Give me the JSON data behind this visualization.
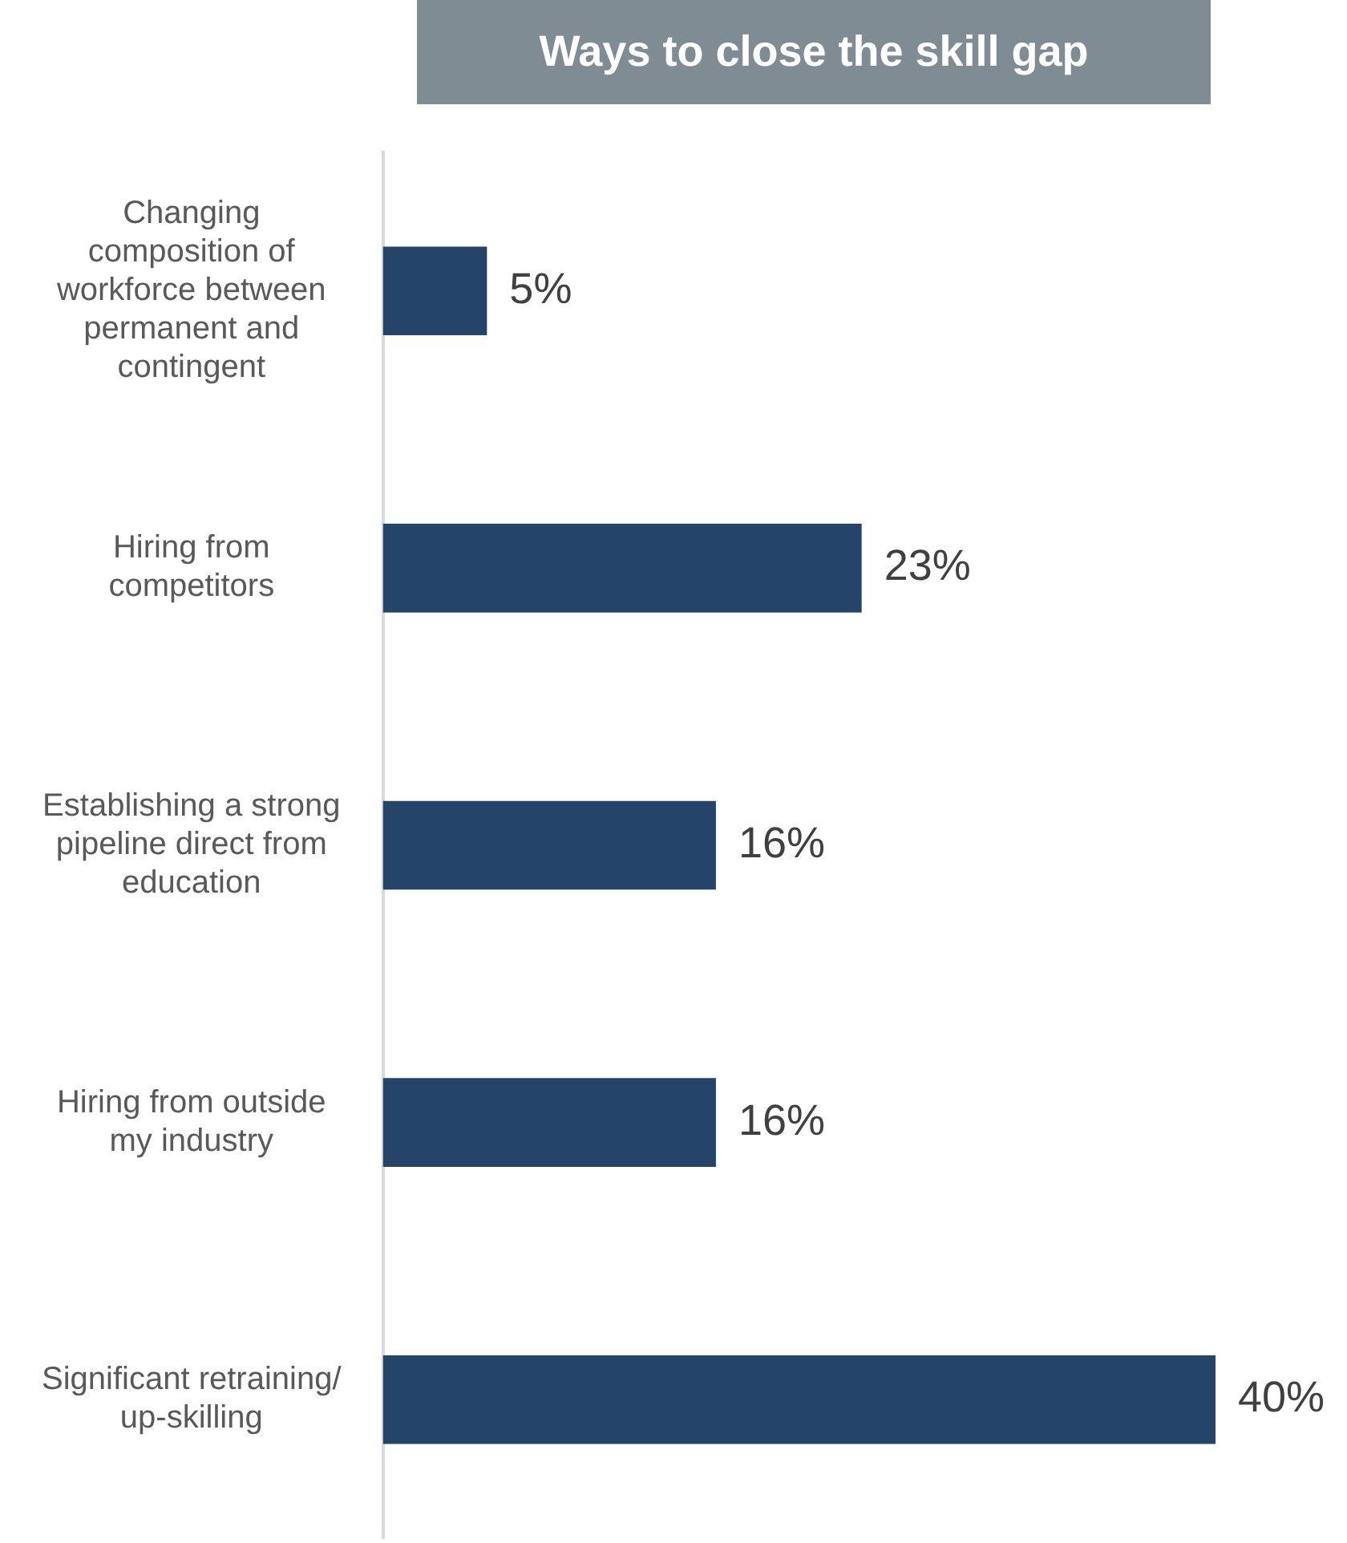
{
  "chart_data": {
    "type": "bar",
    "orientation": "horizontal",
    "title": "Ways to close the skill gap",
    "categories": [
      "Changing composition of workforce between permanent and contingent",
      "Hiring from competitors",
      "Establishing a strong pipeline direct from education",
      "Hiring from outside my industry",
      "Significant retraining/ up-skilling"
    ],
    "values": [
      5,
      23,
      16,
      16,
      40
    ],
    "value_labels": [
      "5%",
      "23%",
      "16%",
      "16%",
      "40%"
    ],
    "color": "#254469"
  }
}
